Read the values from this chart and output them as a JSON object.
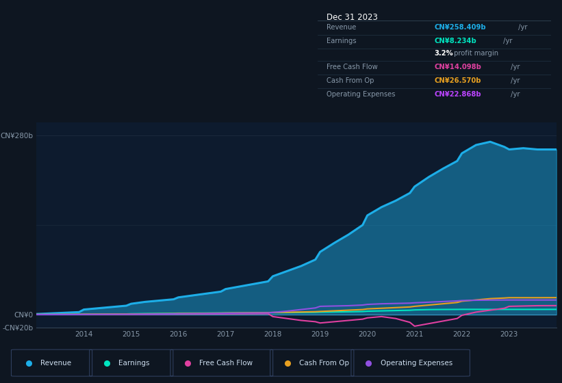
{
  "background_color": "#0e1621",
  "plot_bg_color": "#0d1b2e",
  "ylim": [
    -20,
    300
  ],
  "years": [
    2013.0,
    2013.3,
    2013.6,
    2013.9,
    2014.0,
    2014.3,
    2014.6,
    2014.9,
    2015.0,
    2015.3,
    2015.6,
    2015.9,
    2016.0,
    2016.3,
    2016.6,
    2016.9,
    2017.0,
    2017.3,
    2017.6,
    2017.9,
    2018.0,
    2018.3,
    2018.6,
    2018.9,
    2019.0,
    2019.3,
    2019.6,
    2019.9,
    2020.0,
    2020.3,
    2020.6,
    2020.9,
    2021.0,
    2021.3,
    2021.6,
    2021.9,
    2022.0,
    2022.3,
    2022.6,
    2022.9,
    2023.0,
    2023.3,
    2023.6,
    2023.9,
    2024.0
  ],
  "revenue": [
    1,
    2,
    3,
    4,
    8,
    10,
    12,
    14,
    17,
    20,
    22,
    24,
    27,
    30,
    33,
    36,
    40,
    44,
    48,
    52,
    60,
    68,
    76,
    86,
    98,
    112,
    125,
    140,
    155,
    168,
    178,
    190,
    200,
    215,
    228,
    240,
    252,
    265,
    270,
    262,
    258,
    260,
    258,
    258,
    258
  ],
  "earnings": [
    0.3,
    0.3,
    0.4,
    0.5,
    0.6,
    0.7,
    0.9,
    1.1,
    1.4,
    1.7,
    1.9,
    2.1,
    2.3,
    2.4,
    2.5,
    2.6,
    2.7,
    2.8,
    2.9,
    3.0,
    3.1,
    3.2,
    3.4,
    3.6,
    3.9,
    4.2,
    4.5,
    4.9,
    5.4,
    5.9,
    6.4,
    6.9,
    7.4,
    7.9,
    8.1,
    8.2,
    8.3,
    8.25,
    8.2,
    8.2,
    8.2,
    8.2,
    8.2,
    8.234,
    8.234
  ],
  "free_cash_flow": [
    0.2,
    0.2,
    0.2,
    0.2,
    0.3,
    0.3,
    0.4,
    0.5,
    0.5,
    0.6,
    0.7,
    0.8,
    0.9,
    1.0,
    1.1,
    1.2,
    1.3,
    1.4,
    1.5,
    1.6,
    -3,
    -6,
    -9,
    -11,
    -13,
    -11,
    -9,
    -7,
    -5,
    -3,
    -6,
    -12,
    -18,
    -14,
    -10,
    -6,
    -1,
    4,
    7,
    10,
    13,
    13.5,
    14,
    14.098,
    14.098
  ],
  "cash_from_op": [
    0.3,
    0.3,
    0.4,
    0.5,
    0.6,
    0.7,
    0.8,
    0.9,
    1.0,
    1.2,
    1.4,
    1.6,
    1.8,
    2.0,
    2.2,
    2.4,
    2.6,
    2.8,
    3.0,
    3.2,
    3.5,
    3.8,
    4.2,
    4.6,
    5.0,
    6.0,
    7.0,
    8.0,
    9.0,
    10.0,
    11.0,
    12.0,
    13.0,
    15.0,
    17.0,
    19.0,
    21.0,
    23.0,
    25.0,
    26.0,
    26.5,
    26.5,
    26.5,
    26.57,
    26.57
  ],
  "op_expenses": [
    0.1,
    0.1,
    0.2,
    0.2,
    0.3,
    0.4,
    0.5,
    0.6,
    0.7,
    0.8,
    1.0,
    1.2,
    1.4,
    1.6,
    1.8,
    2.0,
    2.2,
    2.4,
    2.6,
    2.8,
    3.5,
    5.5,
    8.0,
    10.5,
    13.0,
    13.5,
    14.0,
    15.0,
    16.0,
    17.0,
    17.5,
    18.0,
    18.5,
    19.5,
    20.5,
    21.5,
    22.0,
    22.5,
    22.8,
    22.85,
    22.87,
    22.87,
    22.868,
    22.868,
    22.868
  ],
  "revenue_color": "#1daee8",
  "earnings_color": "#00e5c0",
  "fcf_color": "#e040a0",
  "cash_op_color": "#e8a020",
  "op_exp_color": "#9050e0",
  "legend_items": [
    "Revenue",
    "Earnings",
    "Free Cash Flow",
    "Cash From Op",
    "Operating Expenses"
  ],
  "legend_colors": [
    "#1daee8",
    "#00e5c0",
    "#e040a0",
    "#e8a020",
    "#9050e0"
  ],
  "info_box": {
    "title": "Dec 31 2023",
    "rows": [
      {
        "label": "Revenue",
        "value": "CN¥258.409b",
        "suffix": " /yr",
        "value_color": "#1daee8"
      },
      {
        "label": "Earnings",
        "value": "CN¥8.234b",
        "suffix": " /yr",
        "value_color": "#00e5c0"
      },
      {
        "label": "",
        "value": "3.2%",
        "suffix": " profit margin",
        "value_color": "#ffffff"
      },
      {
        "label": "Free Cash Flow",
        "value": "CN¥14.098b",
        "suffix": " /yr",
        "value_color": "#e040a0"
      },
      {
        "label": "Cash From Op",
        "value": "CN¥26.570b",
        "suffix": " /yr",
        "value_color": "#e8a020"
      },
      {
        "label": "Operating Expenses",
        "value": "CN¥22.868b",
        "suffix": " /yr",
        "value_color": "#bb44ff"
      }
    ]
  },
  "xtick_years": [
    2014,
    2015,
    2016,
    2017,
    2018,
    2019,
    2020,
    2021,
    2022,
    2023
  ]
}
